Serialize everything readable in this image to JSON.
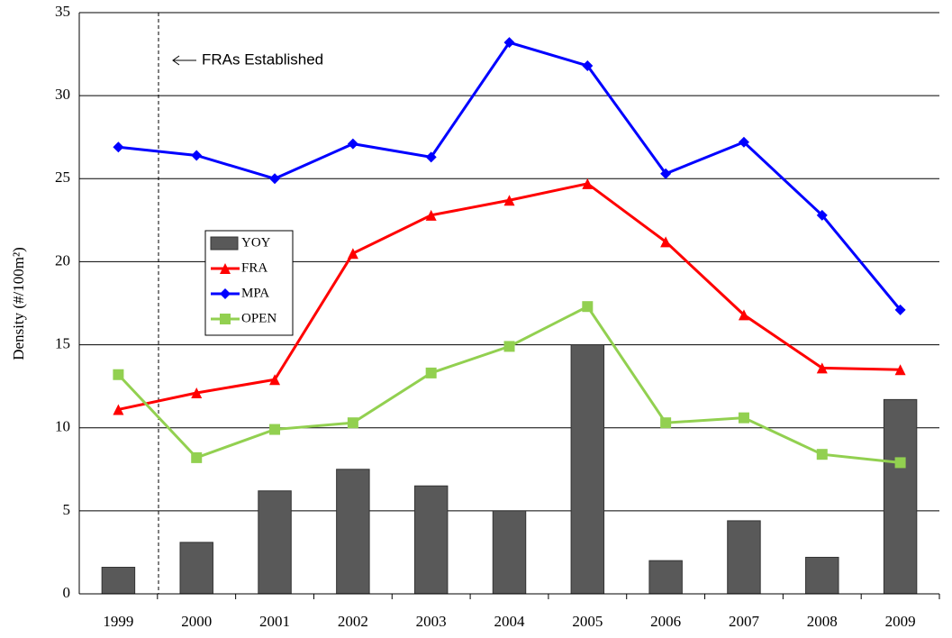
{
  "chart_data": {
    "type": "combo",
    "y_label": "Density (#/100m²)",
    "annotation": "FRAs Established",
    "categories": [
      "1999",
      "2000",
      "2001",
      "2002",
      "2003",
      "2004",
      "2005",
      "2006",
      "2007",
      "2008",
      "2009"
    ],
    "series": [
      {
        "name": "YOY",
        "type": "bar",
        "color": "#595959",
        "values": [
          1.6,
          3.1,
          6.2,
          7.5,
          6.5,
          5.0,
          15.0,
          2.0,
          4.4,
          2.2,
          11.7
        ]
      },
      {
        "name": "FRA",
        "type": "line",
        "marker": "triangle",
        "color": "#ff0000",
        "values": [
          11.1,
          12.1,
          12.9,
          20.5,
          22.8,
          23.7,
          24.7,
          21.2,
          16.8,
          13.6,
          13.5
        ]
      },
      {
        "name": "MPA",
        "type": "line",
        "marker": "diamond",
        "color": "#0000ff",
        "values": [
          26.9,
          26.4,
          25.0,
          27.1,
          26.3,
          33.2,
          31.8,
          25.3,
          27.2,
          22.8,
          17.1
        ]
      },
      {
        "name": "OPEN",
        "type": "line",
        "marker": "square",
        "color": "#92d050",
        "values": [
          13.2,
          8.2,
          9.9,
          10.3,
          13.3,
          14.9,
          17.3,
          10.3,
          10.6,
          8.4,
          7.9
        ]
      }
    ],
    "ylim": [
      0,
      35
    ],
    "yticks": [
      0,
      5,
      10,
      15,
      20,
      25,
      30,
      35
    ],
    "grid": true
  }
}
